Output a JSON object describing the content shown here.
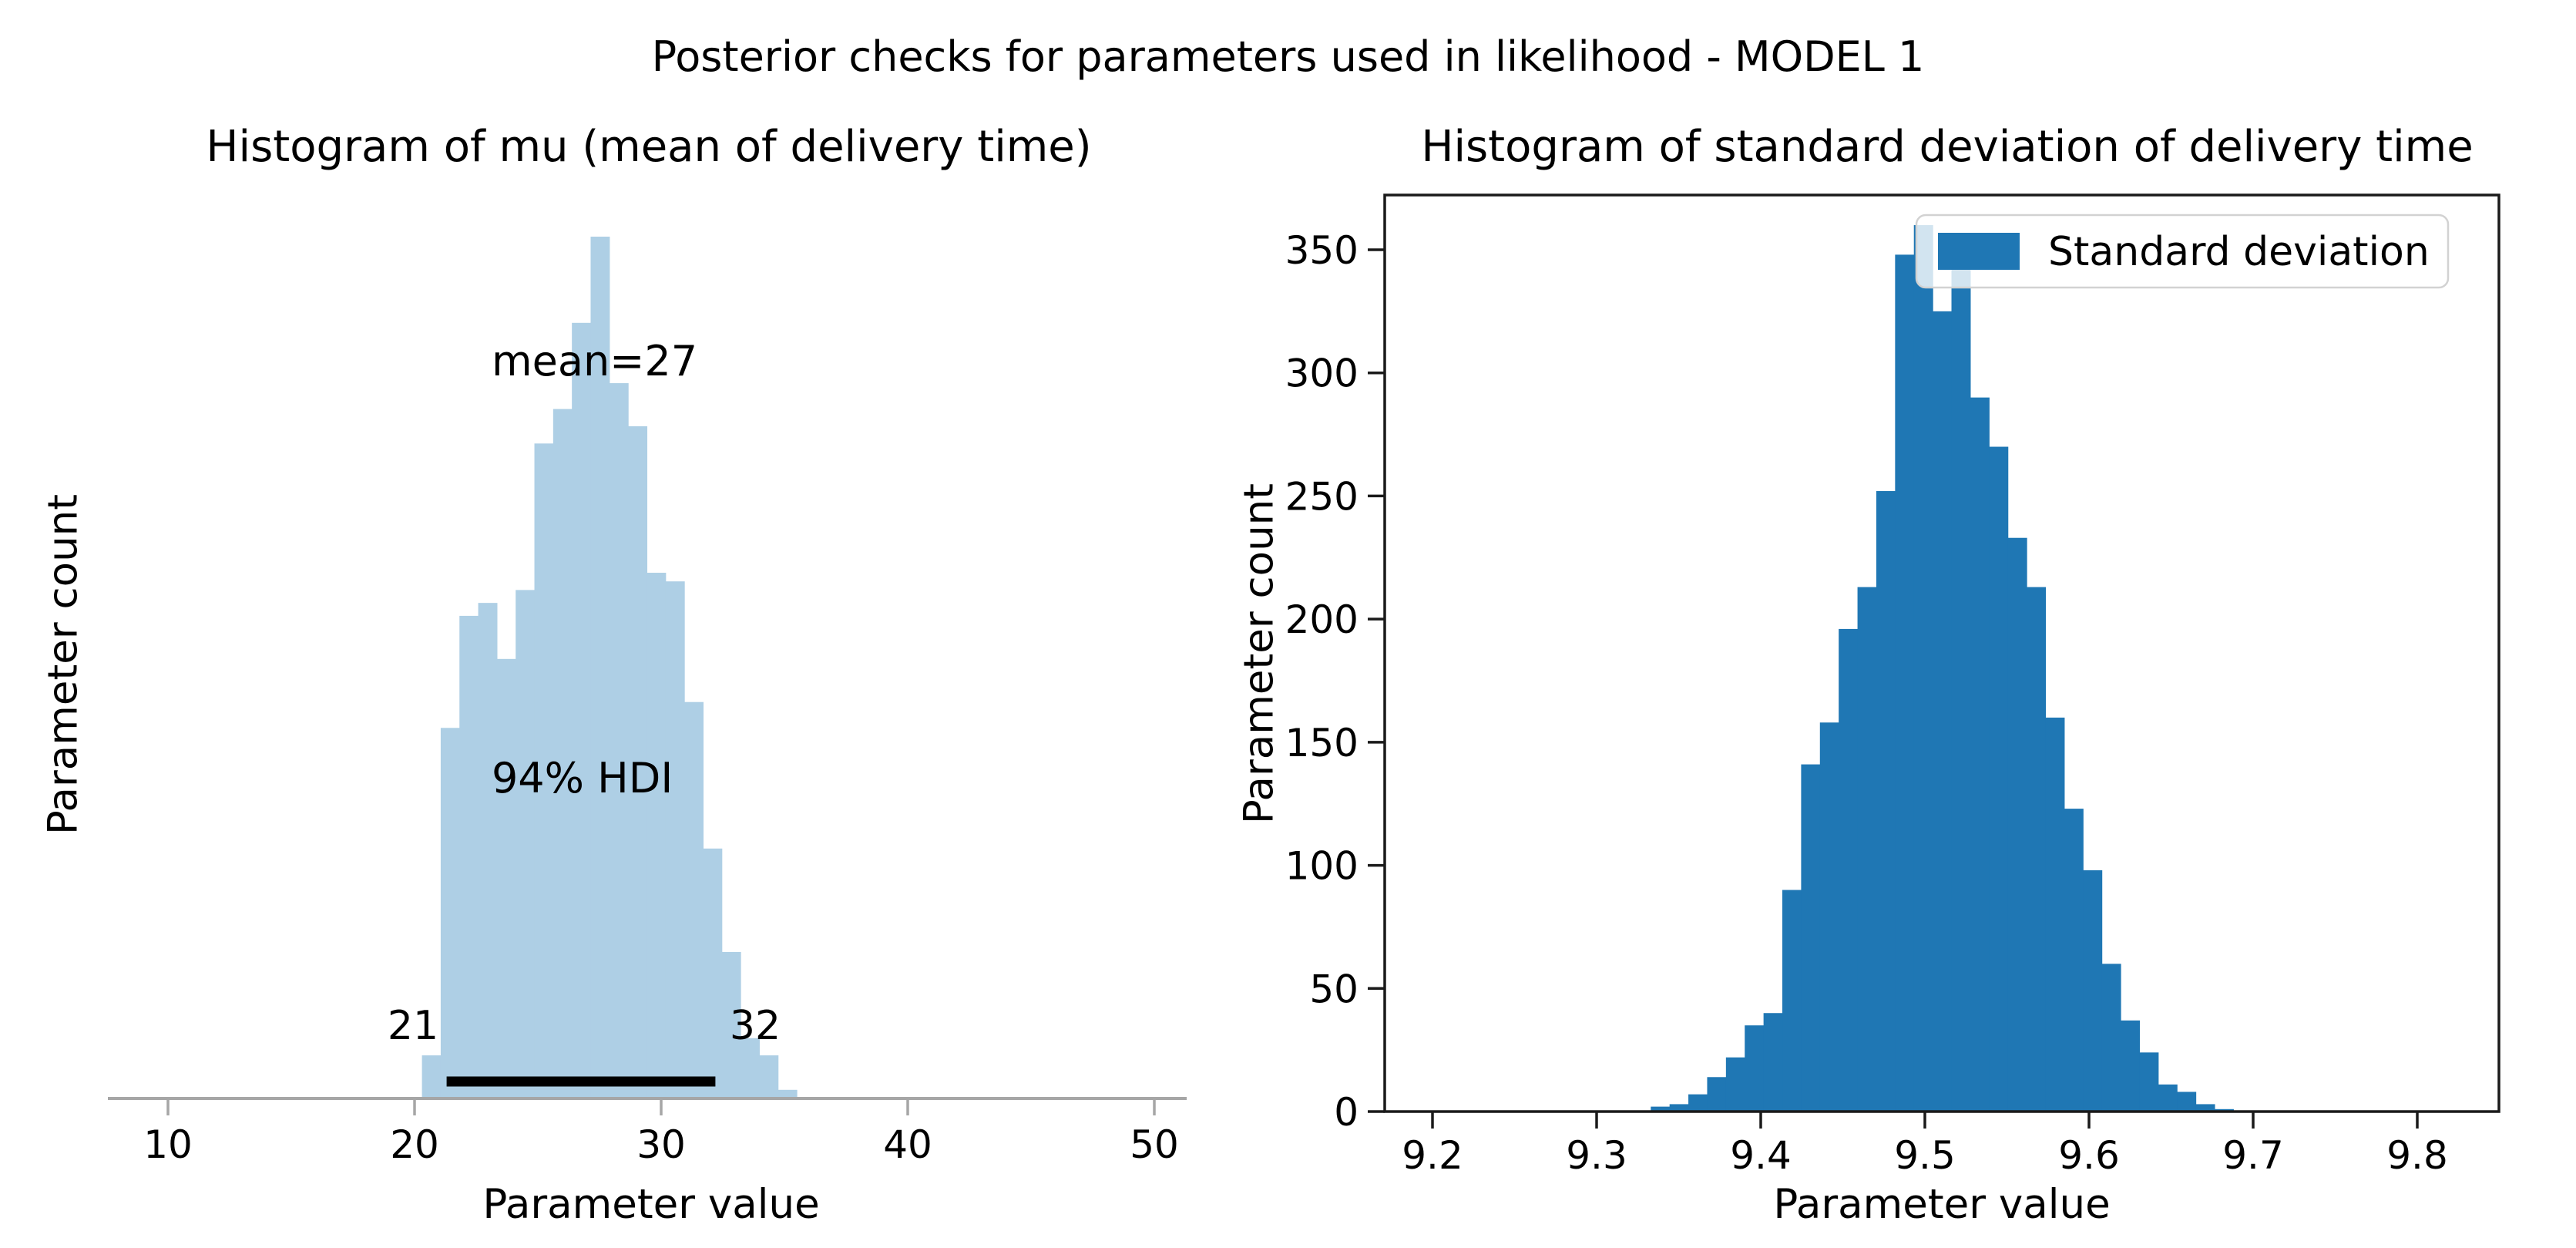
{
  "figure": {
    "suptitle": "Posterior checks for parameters used in likelihood - MODEL 1",
    "background_color": "#ffffff"
  },
  "chart_data": [
    {
      "type": "bar",
      "variant": "histogram",
      "title": "Histogram of mu (mean of delivery time)",
      "xlabel": "Parameter value",
      "ylabel": "Parameter count",
      "bar_color": "#aecfe5",
      "axis_color": "#a6a6a6",
      "xlim": [
        7.4,
        51.4
      ],
      "xticks": [
        10,
        20,
        30,
        40,
        50
      ],
      "y_axis_labels_shown": false,
      "grid": false,
      "legend_position": "none",
      "histogram": {
        "bin_start": 20.3,
        "bin_width": 0.76,
        "note": "left plot has no numeric y axis; heights are relative to the tallest bar",
        "relative_heights": [
          0.05,
          0.43,
          0.56,
          0.575,
          0.51,
          0.59,
          0.76,
          0.8,
          0.9,
          1.0,
          0.83,
          0.78,
          0.61,
          0.6,
          0.46,
          0.29,
          0.17,
          0.07,
          0.05,
          0.01
        ]
      },
      "annotations": {
        "mean_label": "mean=27",
        "mean_value": 27,
        "mean_label_x": 27.3,
        "hdi_label": "94% HDI",
        "hdi_label_x": 26.8,
        "hdi_lower": 21,
        "hdi_upper": 32,
        "hdi_lower_label": "21",
        "hdi_upper_label": "32",
        "hdi_line_from": 21.3,
        "hdi_line_to": 32.2,
        "hdi_line_color": "#000000"
      }
    },
    {
      "type": "bar",
      "variant": "histogram",
      "title": "Histogram of standard deviation of delivery time",
      "xlabel": "Parameter value",
      "ylabel": "Parameter count",
      "bar_color": "#1f77b4",
      "axis_color": "#1a1a1a",
      "xlim": [
        9.17,
        9.85
      ],
      "ylim": [
        0,
        372
      ],
      "xticks": [
        9.2,
        9.3,
        9.4,
        9.5,
        9.6,
        9.7,
        9.8
      ],
      "yticks": [
        0,
        50,
        100,
        150,
        200,
        250,
        300,
        350
      ],
      "grid": false,
      "legend": {
        "label": "Standard deviation",
        "position": "upper right",
        "swatch_color": "#1f77b4",
        "border_color": "#d2d2d2",
        "background_color": "rgba(255,255,255,0.8)"
      },
      "histogram": {
        "bin_start": 9.333,
        "bin_width": 0.01145,
        "counts": [
          2,
          3,
          7,
          14,
          22,
          35,
          40,
          90,
          141,
          158,
          196,
          213,
          252,
          348,
          360,
          325,
          345,
          290,
          270,
          233,
          213,
          160,
          123,
          98,
          60,
          37,
          24,
          11,
          8,
          3,
          1
        ]
      }
    }
  ]
}
